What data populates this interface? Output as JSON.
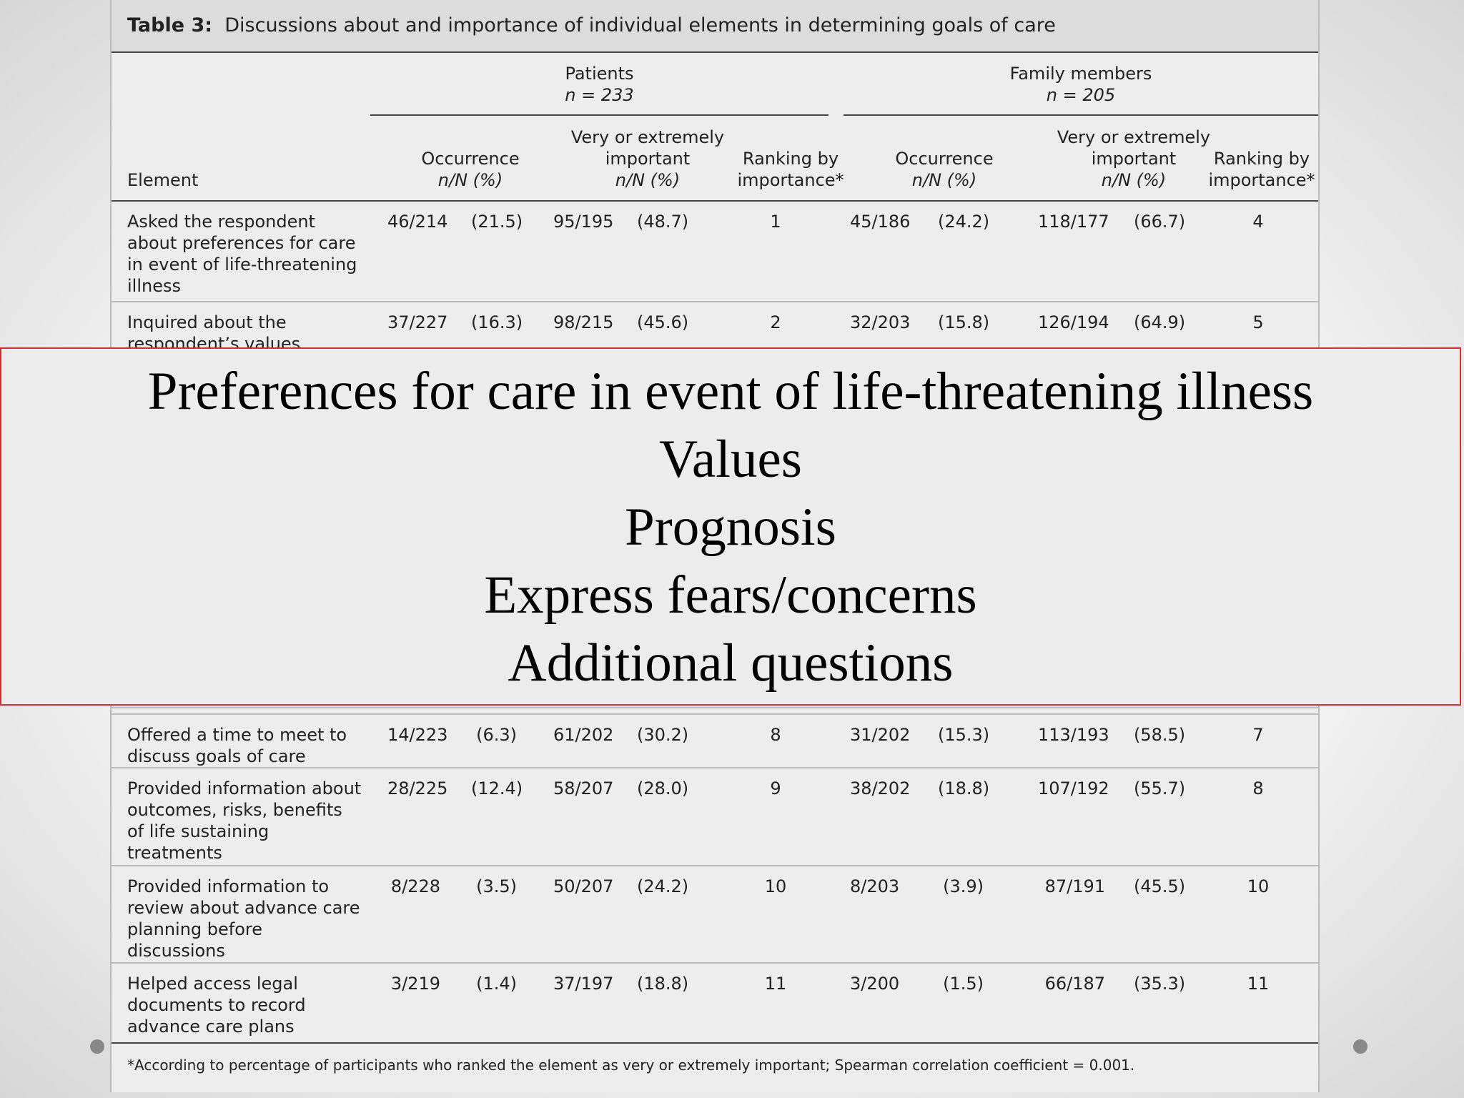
{
  "table": {
    "caption": {
      "label": "Table 3:",
      "text": "Discussions about and importance of individual elements in determining goals of care"
    },
    "groups": [
      {
        "name": "Patients",
        "n": "n = 233"
      },
      {
        "name": "Family members",
        "n": "n = 205"
      }
    ],
    "element_header": "Element",
    "columns": [
      {
        "title": "Occurrence",
        "unit": "n/N (%)"
      },
      {
        "title": "Very or extremely important",
        "unit": "n/N (%)"
      },
      {
        "title": "Ranking by importance*"
      },
      {
        "title": "Occurrence",
        "unit": "n/N (%)"
      },
      {
        "title": "Very or extremely important",
        "unit": "n/N (%)"
      },
      {
        "title": "Ranking by importance*"
      }
    ],
    "rows": [
      [
        "Asked the respondent about preferences for care in event of life-threatening illness",
        "46/214",
        "(21.5)",
        "95/195",
        "(48.7)",
        "1",
        "45/186",
        "(24.2)",
        "118/177",
        "(66.7)",
        "4"
      ],
      [
        "Inquired about the respondent’s values",
        "37/227",
        "(16.3)",
        "98/215",
        "(45.6)",
        "2",
        "32/203",
        "(15.8)",
        "126/194",
        "(64.9)",
        "5"
      ],
      [
        "Offered a time to meet to discuss goals of care",
        "14/223",
        "(6.3)",
        "61/202",
        "(30.2)",
        "8",
        "31/202",
        "(15.3)",
        "113/193",
        "(58.5)",
        "7"
      ],
      [
        "Provided information about outcomes, risks, benefits of life sustaining treatments",
        "28/225",
        "(12.4)",
        "58/207",
        "(28.0)",
        "9",
        "38/202",
        "(18.8)",
        "107/192",
        "(55.7)",
        "8"
      ],
      [
        "Provided information to review about advance care planning before discussions",
        "8/228",
        "(3.5)",
        "50/207",
        "(24.2)",
        "10",
        "8/203",
        "(3.9)",
        "87/191",
        "(45.5)",
        "10"
      ],
      [
        "Helped access legal documents to record advance care plans",
        "3/219",
        "(1.4)",
        "37/197",
        "(18.8)",
        "11",
        "3/200",
        "(1.5)",
        "66/187",
        "(35.3)",
        "11"
      ]
    ],
    "footnote": "*According to percentage of participants who ranked the element as very or extremely important; Spearman correlation coefficient = 0.001."
  },
  "overlay": {
    "lines": [
      "Preferences for care in event of life-threatening illness",
      "Values",
      "Prognosis",
      "Express fears/concerns",
      "Additional questions"
    ]
  }
}
